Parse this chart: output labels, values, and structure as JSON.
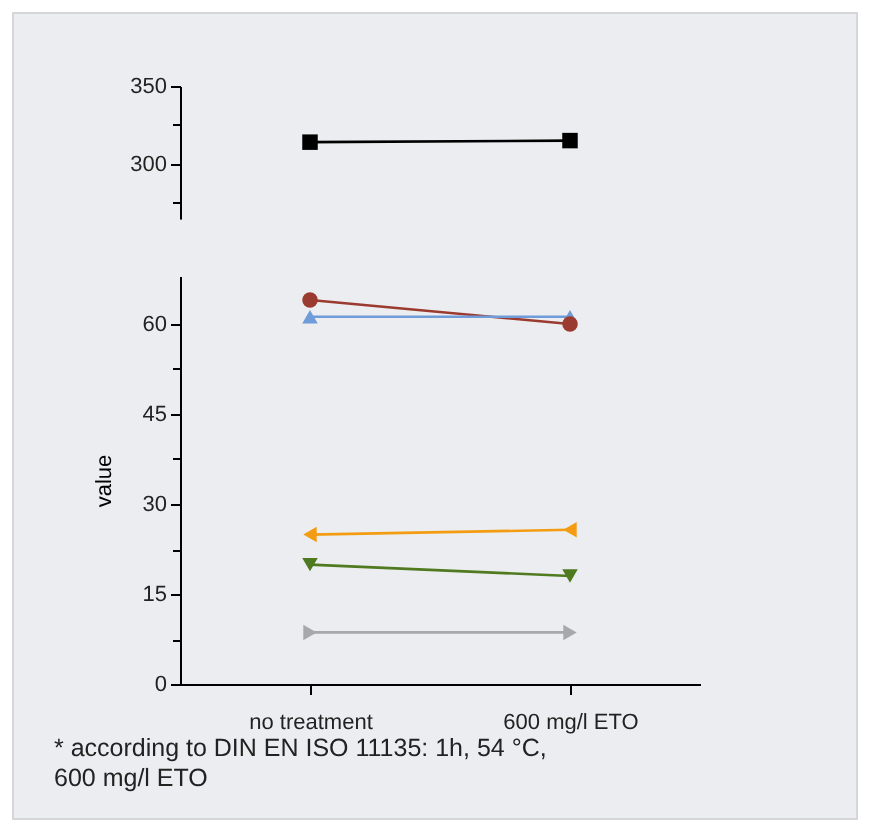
{
  "chart_data": [
    {
      "type": "line",
      "categories": [
        "no treatment",
        "600 mg/l ETO"
      ],
      "tick_labels": "y",
      "ylim": [
        265,
        350
      ],
      "yticks": [
        {
          "value": 275,
          "label": null
        },
        300,
        {
          "value": 325,
          "label": null
        },
        350
      ],
      "series": [
        {
          "color": "#000000",
          "marker": "square",
          "values": [
            314,
            315
          ]
        }
      ]
    },
    {
      "type": "line",
      "categories": [
        "no treatment",
        "600 mg/l ETO"
      ],
      "ylabel": "value",
      "ylim": [
        0,
        68
      ],
      "yticks": [
        0,
        {
          "value": 7.5,
          "label": null
        },
        15,
        {
          "value": 22.5,
          "label": null
        },
        30,
        {
          "value": 37.5,
          "label": null
        },
        45,
        {
          "value": 52.5,
          "label": null
        },
        60
      ],
      "annotations": [
        "* according to DIN EN ISO 11135: 1h, 54 °C, 600 mg/l ETO"
      ],
      "series": [
        {
          "color": "#9b3a2e",
          "marker": "circle",
          "values": [
            64,
            60
          ]
        },
        {
          "color": "#6f9bd8",
          "marker": "triangle",
          "values": [
            61.2,
            61.2
          ]
        },
        {
          "color": "#f39c12",
          "marker": "triangle-left",
          "values": [
            24.9,
            25.7
          ]
        },
        {
          "color": "#4f7a1f",
          "marker": "triangle-down",
          "values": [
            19.9,
            18
          ]
        },
        {
          "color": "#a6a8ab",
          "marker": "triangle-right",
          "values": [
            8.6,
            8.6
          ]
        }
      ]
    }
  ]
}
